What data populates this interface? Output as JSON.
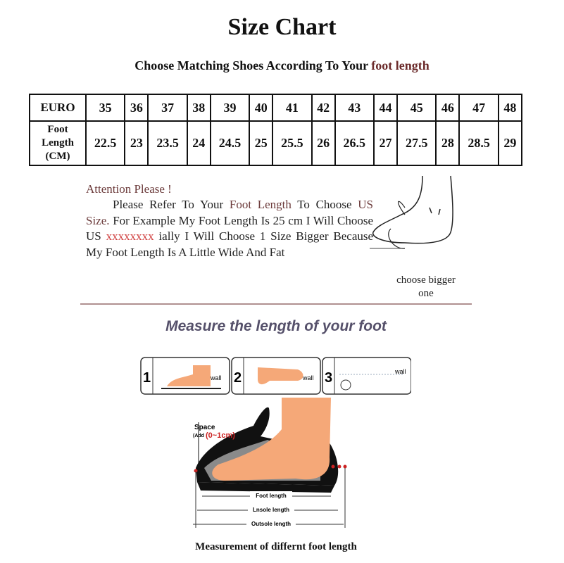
{
  "title": "Size Chart",
  "subtitle": {
    "text": "Choose Matching Shoes According To Your",
    "highlight": "foot length"
  },
  "table": {
    "row_headers": [
      "EURO",
      "Foot Length (CM)"
    ],
    "euro": [
      "35",
      "36",
      "37",
      "38",
      "39",
      "40",
      "41",
      "42",
      "43",
      "44",
      "45",
      "46",
      "47",
      "48"
    ],
    "foot_length_cm": [
      "22.5",
      "23",
      "23.5",
      "24",
      "24.5",
      "25",
      "25.5",
      "26",
      "26.5",
      "27",
      "27.5",
      "28",
      "28.5",
      "29"
    ]
  },
  "attention": {
    "heading": "Attention Please !",
    "p1": "Please Refer To Your",
    "p2": "Foot Length",
    "p3": "To Choose",
    "p4": "US Size.",
    "p5": "For Example My Foot Length Is 25 cm I Will Choose US",
    "p6": "xxxxxxxx",
    "p7": "ially I Will Choose 1 Size Bigger Because My Foot Length Is A Little Wide And Fat"
  },
  "choose_note": "choose bigger one",
  "measure_heading": "Measure the length of your foot",
  "steps": [
    {
      "num": "1",
      "label": "wall"
    },
    {
      "num": "2",
      "label": "wall"
    },
    {
      "num": "3",
      "label": "wall"
    }
  ],
  "diagram": {
    "space": "Space",
    "add": "(Add",
    "range": "(0~1cm)",
    "foot_length": "Foot length",
    "insole_length": "Lnsole length",
    "outsole_length": "Outsole length"
  },
  "caption": "Measurement of differnt foot length",
  "colors": {
    "accent_red": "#d04040",
    "heading_purple": "#55506a",
    "skin": "#f5a878"
  }
}
